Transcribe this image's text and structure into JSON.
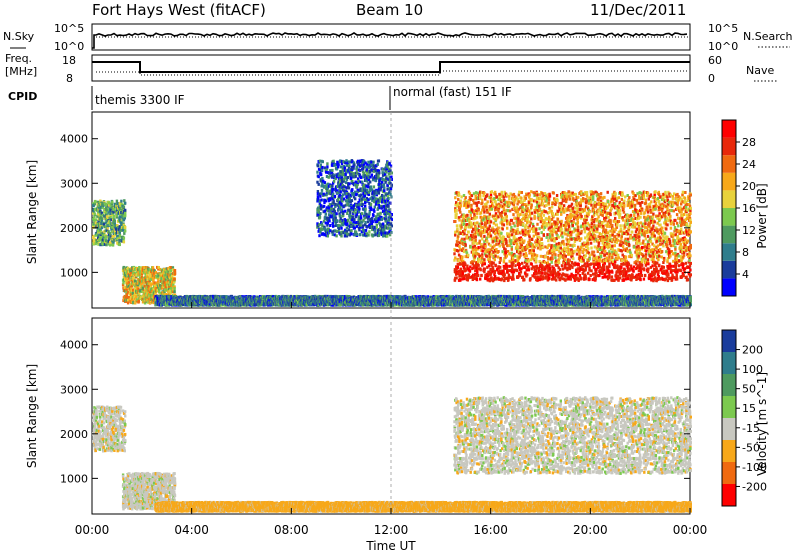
{
  "header": {
    "title": "Fort Hays West (fitACF)",
    "beam": "Beam 10",
    "date": "11/Dec/2011"
  },
  "strips": {
    "nsky": {
      "label": "N.Sky",
      "ticks": [
        "10^5",
        "10^0"
      ],
      "right_ticks": [
        "10^5",
        "10^0"
      ],
      "right_label": "N.Search"
    },
    "freq": {
      "label_line1": "Freq.",
      "label_line2": "[MHz]",
      "ticks": [
        "18",
        "8"
      ],
      "right_ticks": [
        "60",
        "0"
      ],
      "right_label": "Nave"
    },
    "cpid": {
      "label": "CPID",
      "segments": [
        "themis 3300 IF",
        "normal (fast) 151 IF"
      ]
    }
  },
  "chart_data": [
    {
      "type": "heatmap",
      "panel": "power",
      "ylabel": "Slant Range [km]",
      "yticks": [
        1000,
        2000,
        3000,
        4000
      ],
      "ylim": [
        200,
        4600
      ],
      "xlim": [
        0,
        24
      ],
      "colorbar": {
        "label": "Power [dB]",
        "ticks": [
          4,
          8,
          12,
          16,
          20,
          24,
          28
        ],
        "colors": [
          "#0000ff",
          "#1a3c9c",
          "#2f7d8c",
          "#4e9a5f",
          "#7cc94f",
          "#e8d23c",
          "#f7a81a",
          "#f06a10",
          "#e8280a",
          "#ff0000"
        ]
      },
      "regions": [
        {
          "t": [
            0.0,
            1.3
          ],
          "range": [
            1600,
            2600
          ],
          "value": 12
        },
        {
          "t": [
            1.2,
            3.3
          ],
          "range": [
            300,
            1100
          ],
          "value": 18
        },
        {
          "t": [
            2.5,
            24.0
          ],
          "range": [
            250,
            450
          ],
          "value": 8
        },
        {
          "t": [
            9.0,
            12.0
          ],
          "range": [
            1800,
            3500
          ],
          "value": 6
        },
        {
          "t": [
            14.5,
            24.0
          ],
          "range": [
            800,
            2800
          ],
          "value": 22
        }
      ]
    },
    {
      "type": "heatmap",
      "panel": "velocity",
      "ylabel": "Slant Range [km]",
      "yticks": [
        1000,
        2000,
        3000,
        4000
      ],
      "ylim": [
        200,
        4600
      ],
      "xlim": [
        0,
        24
      ],
      "xticks": [
        "00:00",
        "04:00",
        "08:00",
        "12:00",
        "16:00",
        "20:00",
        "00:00"
      ],
      "xlabel": "Time UT",
      "colorbar": {
        "label": "Velocity [m s^-1]",
        "ticks": [
          200,
          100,
          50,
          15,
          -15,
          -50,
          -100,
          -200
        ],
        "colors": [
          "#1a3c9c",
          "#2f7d8c",
          "#4e9a5f",
          "#7cc94f",
          "#c8c8c0",
          "#f7a81a",
          "#f06a10",
          "#ff0000"
        ]
      },
      "regions": [
        {
          "t": [
            0.0,
            1.3
          ],
          "range": [
            1600,
            2600
          ],
          "value": 0
        },
        {
          "t": [
            1.2,
            3.3
          ],
          "range": [
            300,
            1100
          ],
          "value": 0
        },
        {
          "t": [
            2.5,
            24.0
          ],
          "range": [
            250,
            450
          ],
          "value": -30
        },
        {
          "t": [
            14.5,
            24.0
          ],
          "range": [
            1100,
            2800
          ],
          "value": 0
        }
      ]
    }
  ]
}
